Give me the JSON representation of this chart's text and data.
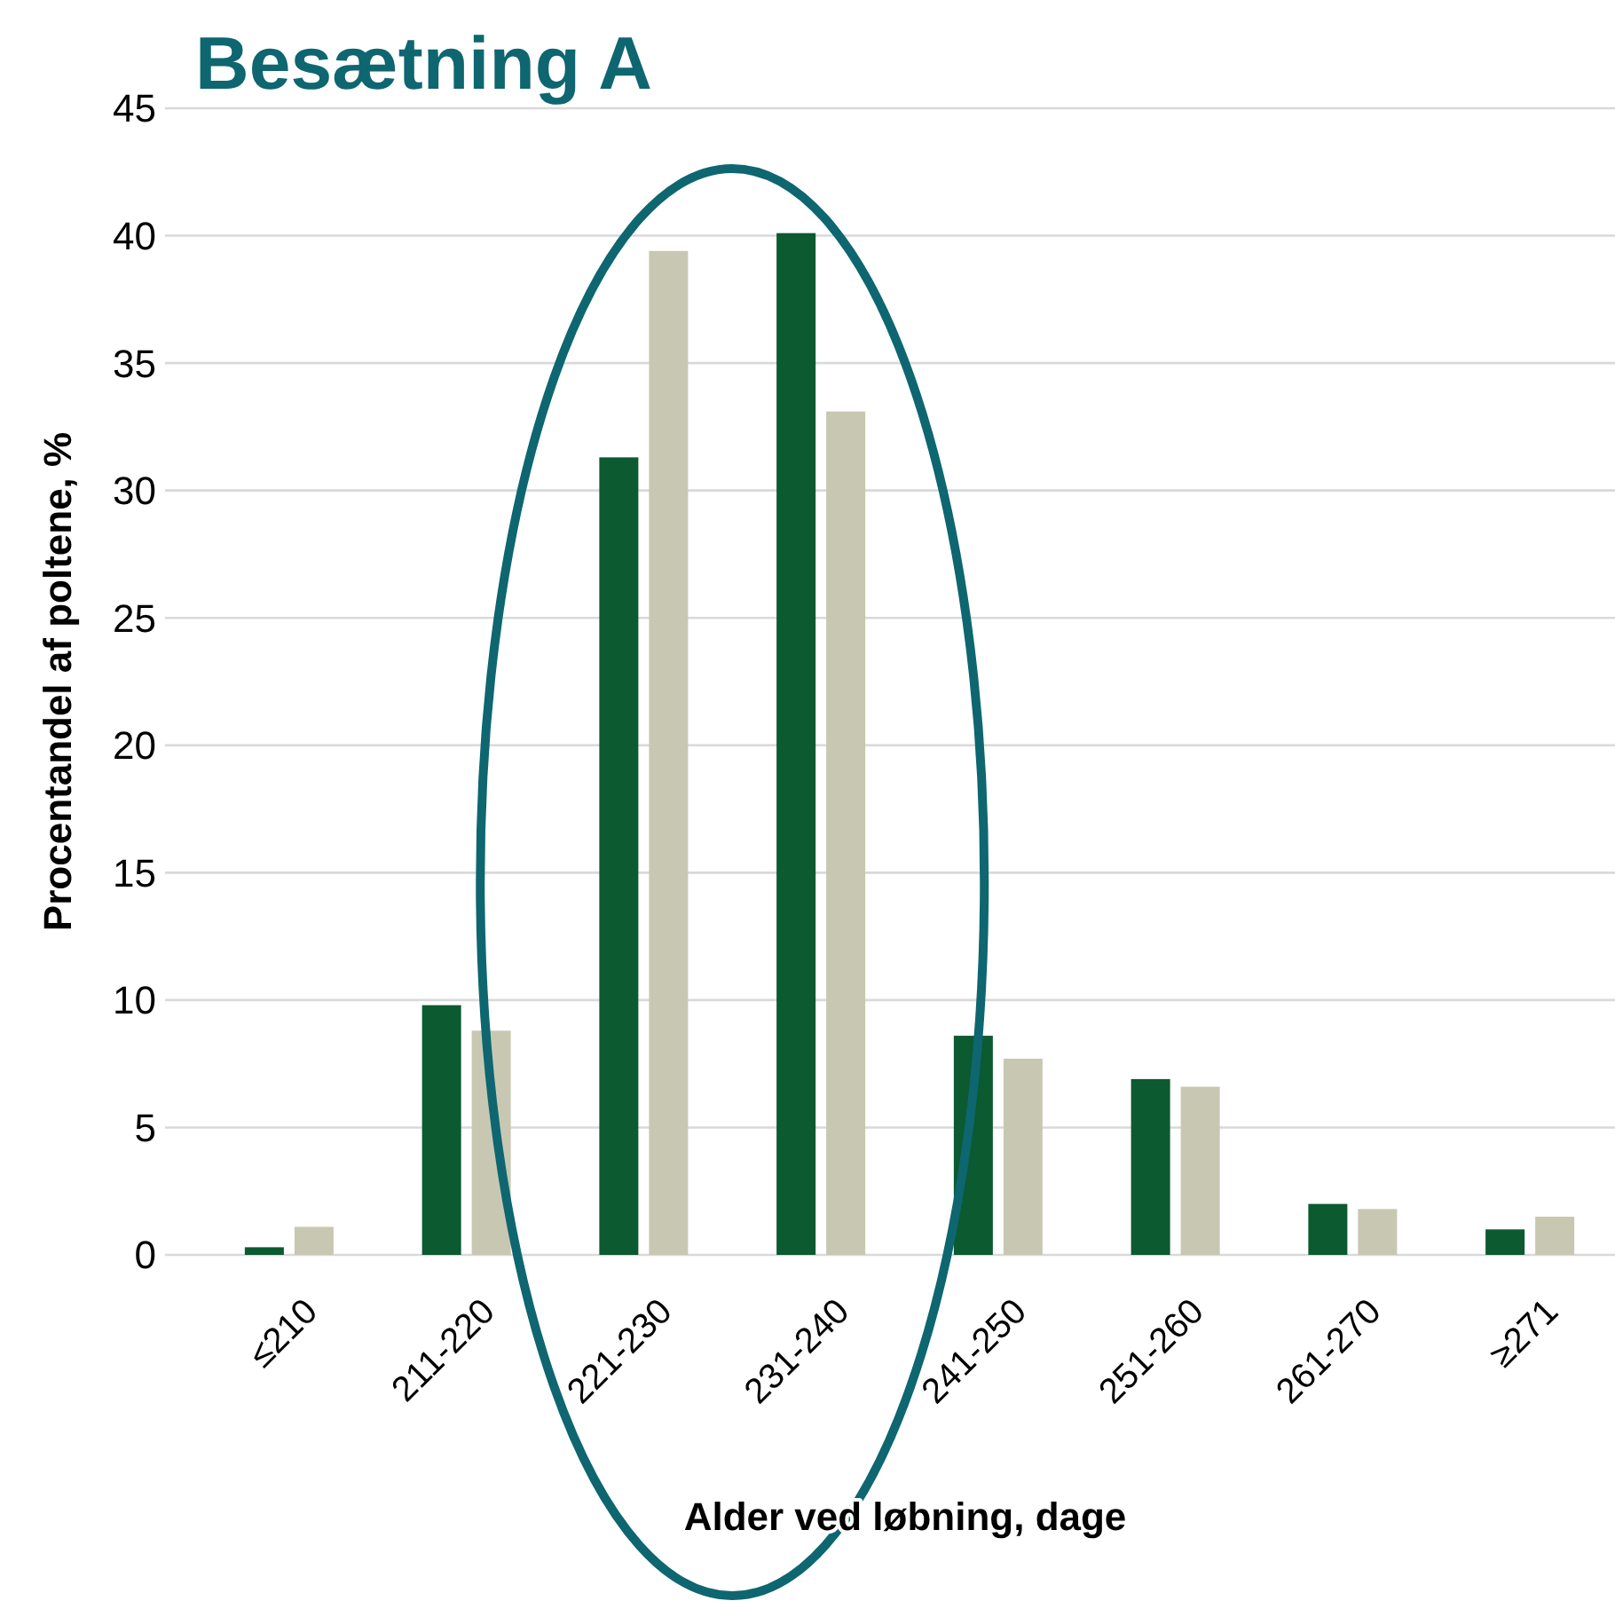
{
  "chart_data": {
    "type": "bar",
    "title": "Besætning A",
    "xlabel": "Alder ved løbning, dage",
    "ylabel": "Procentandel af poltene, %",
    "categories": [
      "≤210",
      "211-220",
      "221-230",
      "231-240",
      "241-250",
      "251-260",
      "261-270",
      "≥271"
    ],
    "series": [
      {
        "color": "#0b5a30",
        "values": [
          0.3,
          9.8,
          31.3,
          40.1,
          8.6,
          6.9,
          2.0,
          1.0
        ]
      },
      {
        "color": "#c8c8b2",
        "values": [
          1.1,
          8.8,
          39.4,
          33.1,
          7.7,
          6.6,
          1.8,
          1.5
        ]
      }
    ],
    "ylim": [
      0,
      45
    ],
    "yticks": [
      0,
      5,
      10,
      15,
      20,
      25,
      30,
      35,
      40,
      45
    ],
    "grid": "y"
  }
}
